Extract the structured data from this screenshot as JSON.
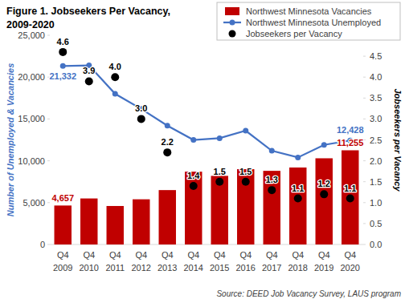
{
  "chart_data": {
    "type": "bar",
    "title": "Figure 1. Jobseekers Per Vacancy, 2009-2020",
    "y_label": "Number of Unemployed & Vacancies",
    "y2_label": "Jobseekers per Vacancy",
    "annotations": [
      "Source: DEED Job Vacancy Survey, LAUS program"
    ],
    "categories": [
      "Q4 2009",
      "Q4 2010",
      "Q4 2011",
      "Q4 2012",
      "Q4 2013",
      "Q4 2014",
      "Q4 2015",
      "Q4 2016",
      "Q4 2017",
      "Q4 2018",
      "Q4 2019",
      "Q4 2020"
    ],
    "series": [
      {
        "name": "Northwest Minnesota Vacancies",
        "type": "bar",
        "color": "#C00000",
        "values": [
          4657,
          5500,
          4600,
          5400,
          6500,
          8700,
          8200,
          9000,
          8800,
          9200,
          10300,
          11255
        ],
        "value_labels": [
          "4,657",
          null,
          null,
          null,
          null,
          null,
          null,
          null,
          null,
          null,
          null,
          "11,255"
        ]
      },
      {
        "name": "Northwest Minnesota Unemployed",
        "type": "line",
        "color": "#4472C4",
        "marker": "circle",
        "line_style": "solid",
        "values": [
          21332,
          21400,
          18000,
          16200,
          14200,
          12500,
          12700,
          13600,
          11200,
          10400,
          11900,
          12428
        ],
        "value_labels": [
          "21,332",
          null,
          null,
          null,
          null,
          null,
          null,
          null,
          null,
          null,
          null,
          "12,428"
        ]
      },
      {
        "name": "Jobseekers per Vacancy",
        "type": "scatter",
        "color": "#000000",
        "marker": "circle",
        "axis": "y2",
        "values": [
          4.6,
          3.9,
          4.0,
          3.0,
          2.2,
          1.4,
          1.5,
          1.5,
          1.3,
          1.1,
          1.2,
          1.1
        ],
        "value_labels": [
          "4.6",
          "3.9",
          "4.0",
          "3.0",
          "2.2",
          "1.4",
          "1.5",
          "1.5",
          "1.3",
          "1.1",
          "1.2",
          "1.1"
        ]
      }
    ],
    "ylim": [
      0,
      25000
    ],
    "yticks": [
      0,
      {
        "value": 5000,
        "label": "5,000"
      },
      {
        "value": 10000,
        "label": "10,000"
      },
      {
        "value": 15000,
        "label": "15,000"
      },
      {
        "value": 20000,
        "label": "20,000"
      },
      {
        "value": 25000,
        "label": "25,000"
      }
    ],
    "y2lim": [
      0,
      5
    ],
    "y2ticks": [
      {
        "value": 0,
        "label": "0.0"
      },
      {
        "value": 0.5,
        "label": "0.5"
      },
      {
        "value": 1,
        "label": "1.0"
      },
      {
        "value": 1.5,
        "label": "1.5"
      },
      {
        "value": 2,
        "label": "2.0"
      },
      {
        "value": 2.5,
        "label": "2.5"
      },
      {
        "value": 3,
        "label": "3.0"
      },
      {
        "value": 3.5,
        "label": "3.5"
      },
      {
        "value": 4,
        "label": "4.0"
      },
      {
        "value": 4.5,
        "label": "4.5"
      },
      {
        "value": 5,
        "label": "5.0"
      }
    ],
    "grid": false,
    "legend": "top-right"
  }
}
